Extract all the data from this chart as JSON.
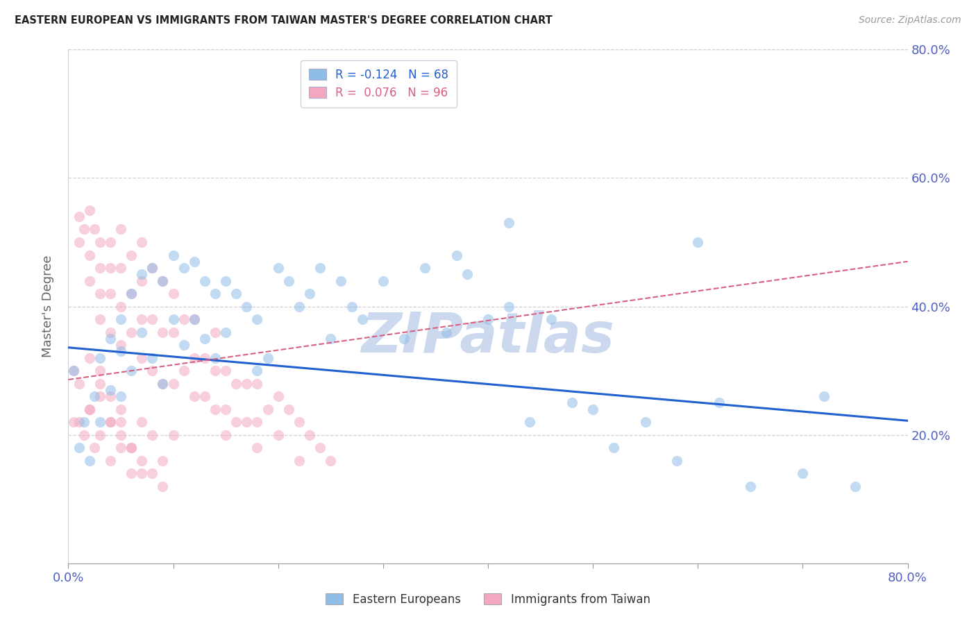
{
  "title": "EASTERN EUROPEAN VS IMMIGRANTS FROM TAIWAN MASTER'S DEGREE CORRELATION CHART",
  "source": "Source: ZipAtlas.com",
  "ylabel": "Master's Degree",
  "watermark": "ZIPatlas",
  "xlim": [
    0.0,
    0.8
  ],
  "ylim": [
    0.0,
    0.8
  ],
  "xtick_positions": [
    0.0,
    0.1,
    0.2,
    0.3,
    0.4,
    0.5,
    0.6,
    0.7,
    0.8
  ],
  "xticklabels": [
    "0.0%",
    "",
    "",
    "",
    "",
    "",
    "",
    "",
    "80.0%"
  ],
  "ytick_positions": [
    0.0,
    0.1,
    0.2,
    0.3,
    0.4,
    0.5,
    0.6,
    0.7,
    0.8
  ],
  "right_yticklabels": [
    "",
    "",
    "20.0%",
    "",
    "40.0%",
    "",
    "60.0%",
    "",
    "80.0%"
  ],
  "blue_color": "#90bce8",
  "pink_color": "#f4a8c0",
  "blue_line_color": "#2060d0",
  "pink_line_color": "#d86080",
  "legend_blue_R": "-0.124",
  "legend_blue_N": "68",
  "legend_pink_R": "0.076",
  "legend_pink_N": "96",
  "grid_color": "#d0d0d8",
  "title_color": "#222222",
  "tick_label_color": "#5060c0",
  "watermark_color": "#ccd8ee",
  "blue_scatter_x": [
    0.005,
    0.01,
    0.015,
    0.02,
    0.025,
    0.03,
    0.03,
    0.04,
    0.04,
    0.05,
    0.05,
    0.05,
    0.06,
    0.06,
    0.07,
    0.07,
    0.08,
    0.08,
    0.09,
    0.09,
    0.1,
    0.1,
    0.11,
    0.11,
    0.12,
    0.12,
    0.13,
    0.13,
    0.14,
    0.14,
    0.15,
    0.15,
    0.16,
    0.17,
    0.18,
    0.18,
    0.19,
    0.2,
    0.21,
    0.22,
    0.23,
    0.24,
    0.25,
    0.26,
    0.27,
    0.28,
    0.3,
    0.32,
    0.34,
    0.36,
    0.37,
    0.38,
    0.4,
    0.42,
    0.44,
    0.46,
    0.48,
    0.5,
    0.52,
    0.55,
    0.58,
    0.6,
    0.62,
    0.65,
    0.7,
    0.72,
    0.75,
    0.42
  ],
  "blue_scatter_y": [
    0.3,
    0.18,
    0.22,
    0.16,
    0.26,
    0.32,
    0.22,
    0.35,
    0.27,
    0.38,
    0.33,
    0.26,
    0.42,
    0.3,
    0.45,
    0.36,
    0.46,
    0.32,
    0.44,
    0.28,
    0.48,
    0.38,
    0.46,
    0.34,
    0.47,
    0.38,
    0.44,
    0.35,
    0.42,
    0.32,
    0.44,
    0.36,
    0.42,
    0.4,
    0.38,
    0.3,
    0.32,
    0.46,
    0.44,
    0.4,
    0.42,
    0.46,
    0.35,
    0.44,
    0.4,
    0.38,
    0.44,
    0.35,
    0.46,
    0.36,
    0.48,
    0.45,
    0.38,
    0.4,
    0.22,
    0.38,
    0.25,
    0.24,
    0.18,
    0.22,
    0.16,
    0.5,
    0.25,
    0.12,
    0.14,
    0.26,
    0.12,
    0.53
  ],
  "pink_scatter_x": [
    0.005,
    0.01,
    0.01,
    0.015,
    0.02,
    0.02,
    0.02,
    0.025,
    0.03,
    0.03,
    0.03,
    0.03,
    0.04,
    0.04,
    0.04,
    0.04,
    0.05,
    0.05,
    0.05,
    0.05,
    0.06,
    0.06,
    0.06,
    0.07,
    0.07,
    0.07,
    0.07,
    0.08,
    0.08,
    0.08,
    0.09,
    0.09,
    0.09,
    0.1,
    0.1,
    0.1,
    0.11,
    0.11,
    0.12,
    0.12,
    0.12,
    0.13,
    0.13,
    0.14,
    0.14,
    0.14,
    0.15,
    0.15,
    0.15,
    0.16,
    0.16,
    0.17,
    0.17,
    0.18,
    0.18,
    0.18,
    0.19,
    0.2,
    0.2,
    0.21,
    0.22,
    0.22,
    0.23,
    0.24,
    0.25,
    0.005,
    0.01,
    0.015,
    0.02,
    0.025,
    0.03,
    0.04,
    0.05,
    0.06,
    0.07,
    0.08,
    0.09,
    0.1,
    0.03,
    0.04,
    0.05,
    0.06,
    0.07,
    0.02,
    0.03,
    0.04,
    0.05,
    0.01,
    0.02,
    0.03,
    0.04,
    0.05,
    0.06,
    0.07,
    0.08,
    0.09
  ],
  "pink_scatter_y": [
    0.3,
    0.54,
    0.5,
    0.52,
    0.55,
    0.48,
    0.44,
    0.52,
    0.5,
    0.46,
    0.42,
    0.38,
    0.5,
    0.46,
    0.42,
    0.36,
    0.52,
    0.46,
    0.4,
    0.34,
    0.48,
    0.42,
    0.36,
    0.5,
    0.44,
    0.38,
    0.32,
    0.46,
    0.38,
    0.3,
    0.44,
    0.36,
    0.28,
    0.42,
    0.36,
    0.28,
    0.38,
    0.3,
    0.38,
    0.32,
    0.26,
    0.32,
    0.26,
    0.36,
    0.3,
    0.24,
    0.3,
    0.24,
    0.2,
    0.28,
    0.22,
    0.28,
    0.22,
    0.28,
    0.22,
    0.18,
    0.24,
    0.26,
    0.2,
    0.24,
    0.22,
    0.16,
    0.2,
    0.18,
    0.16,
    0.22,
    0.22,
    0.2,
    0.24,
    0.18,
    0.26,
    0.22,
    0.24,
    0.18,
    0.22,
    0.2,
    0.16,
    0.2,
    0.28,
    0.22,
    0.2,
    0.18,
    0.14,
    0.32,
    0.3,
    0.26,
    0.22,
    0.28,
    0.24,
    0.2,
    0.16,
    0.18,
    0.14,
    0.16,
    0.14,
    0.12
  ],
  "blue_trend_x": [
    0.0,
    0.8
  ],
  "blue_trend_y": [
    0.336,
    0.222
  ],
  "pink_trend_x": [
    0.0,
    0.8
  ],
  "pink_trend_y": [
    0.286,
    0.47
  ],
  "marker_size": 120,
  "marker_alpha": 0.55
}
